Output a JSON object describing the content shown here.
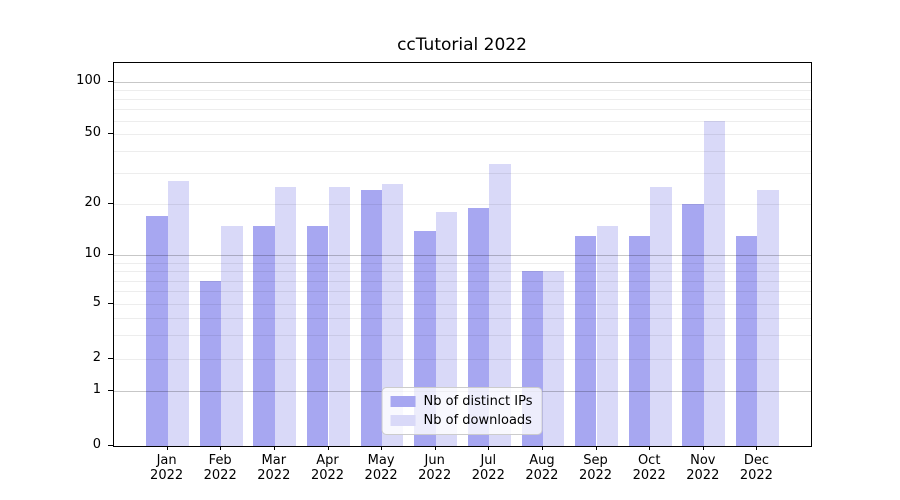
{
  "title": "ccTutorial 2022",
  "chart_data": {
    "type": "bar",
    "title": "ccTutorial 2022",
    "year": "2022",
    "categories": [
      "Jan",
      "Feb",
      "Mar",
      "Apr",
      "May",
      "Jun",
      "Jul",
      "Aug",
      "Sep",
      "Oct",
      "Nov",
      "Dec"
    ],
    "series": [
      {
        "name": "Nb of distinct IPs",
        "color": "#a7a7f1",
        "values": [
          17,
          7,
          15,
          15,
          24,
          14,
          19,
          8,
          13,
          13,
          20,
          13
        ]
      },
      {
        "name": "Nb of downloads",
        "color": "#d9d9f8",
        "values": [
          27,
          15,
          25,
          25,
          26,
          18,
          34,
          8,
          15,
          25,
          60,
          24
        ]
      }
    ],
    "xlabel": "",
    "ylabel": "",
    "yscale": "symlog-like (logarithmic above 1, linear 0 to 1)",
    "ylim": [
      0,
      129
    ],
    "yticks": [
      0,
      1,
      2,
      5,
      10,
      20,
      50,
      100
    ],
    "grid": {
      "enabled": true,
      "major_values": [
        1,
        10,
        100
      ],
      "major_color": "#c7c7c7",
      "minor_values": [
        2,
        3,
        4,
        5,
        6,
        7,
        8,
        9,
        20,
        30,
        40,
        50,
        60,
        70,
        80,
        90
      ],
      "minor_color": "#ededed"
    },
    "scale_anchors": [
      [
        0,
        0
      ],
      [
        1,
        0.1436
      ],
      [
        2,
        0.2272
      ],
      [
        5,
        0.37
      ],
      [
        10,
        0.498
      ],
      [
        20,
        0.631
      ],
      [
        50,
        0.8138
      ],
      [
        100,
        0.9504
      ]
    ],
    "legend_position": "lower center",
    "axis_color": "#000000",
    "background_color": "#ffffff"
  },
  "legend": {
    "items": [
      {
        "label": "Nb of distinct IPs"
      },
      {
        "label": "Nb of downloads"
      }
    ]
  }
}
